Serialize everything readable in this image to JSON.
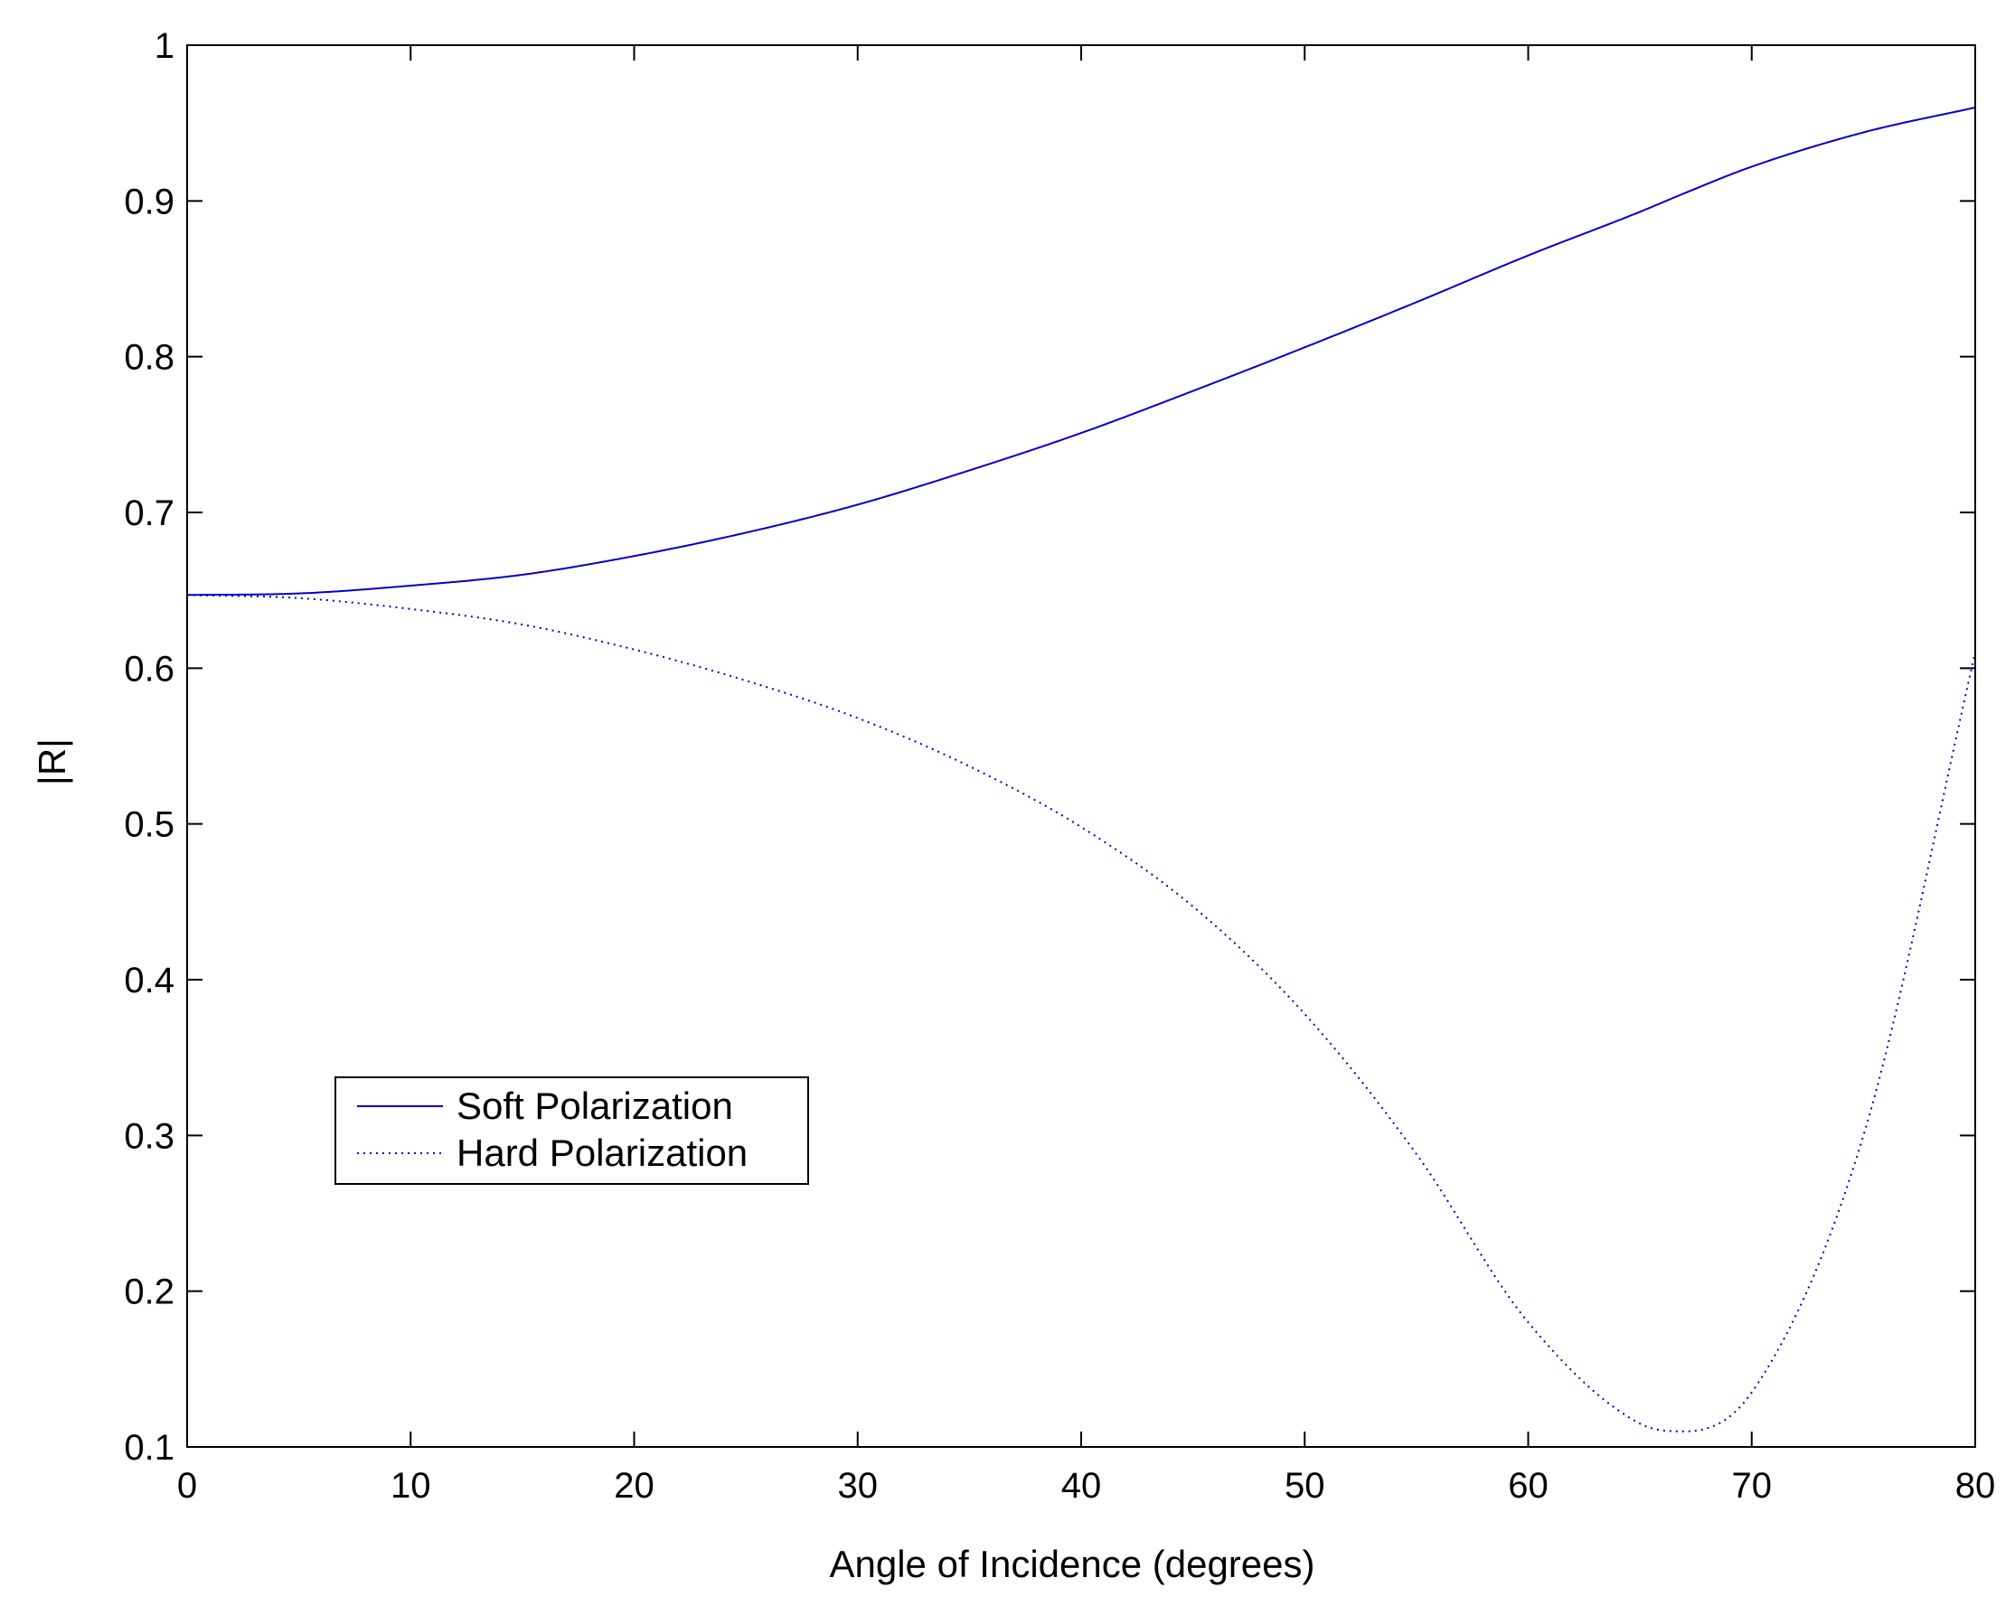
{
  "chart_data": {
    "type": "line",
    "xlabel": "Angle of Incidence (degrees)",
    "ylabel": "|R|",
    "xlim": [
      0,
      80
    ],
    "ylim": [
      0.1,
      1
    ],
    "xticks": [
      0,
      10,
      20,
      30,
      40,
      50,
      60,
      70,
      80
    ],
    "yticks": [
      0.1,
      0.2,
      0.3,
      0.4,
      0.5,
      0.6,
      0.7,
      0.8,
      0.9,
      1
    ],
    "xtick_labels": [
      "0",
      "10",
      "20",
      "30",
      "40",
      "50",
      "60",
      "70",
      "80"
    ],
    "ytick_labels": [
      "0.1",
      "0.2",
      "0.3",
      "0.4",
      "0.5",
      "0.6",
      "0.7",
      "0.8",
      "0.9",
      "1"
    ],
    "grid": false,
    "legend_position": "lower-left",
    "x": [
      0,
      5,
      10,
      15,
      20,
      25,
      30,
      35,
      40,
      45,
      50,
      55,
      60,
      65,
      67,
      70,
      75,
      80
    ],
    "series": [
      {
        "name": "Soft Polarization",
        "style": "solid",
        "color": "#0000c8",
        "values": [
          0.647,
          0.648,
          0.653,
          0.66,
          0.672,
          0.687,
          0.705,
          0.727,
          0.751,
          0.778,
          0.806,
          0.835,
          0.865,
          0.893,
          0.905,
          0.922,
          0.944,
          0.96
        ]
      },
      {
        "name": "Hard Polarization",
        "style": "dotted",
        "color": "#0000c8",
        "values": [
          0.647,
          0.645,
          0.638,
          0.628,
          0.612,
          0.592,
          0.568,
          0.537,
          0.498,
          0.447,
          0.378,
          0.288,
          0.18,
          0.115,
          0.11,
          0.135,
          0.3,
          0.61
        ]
      }
    ]
  }
}
